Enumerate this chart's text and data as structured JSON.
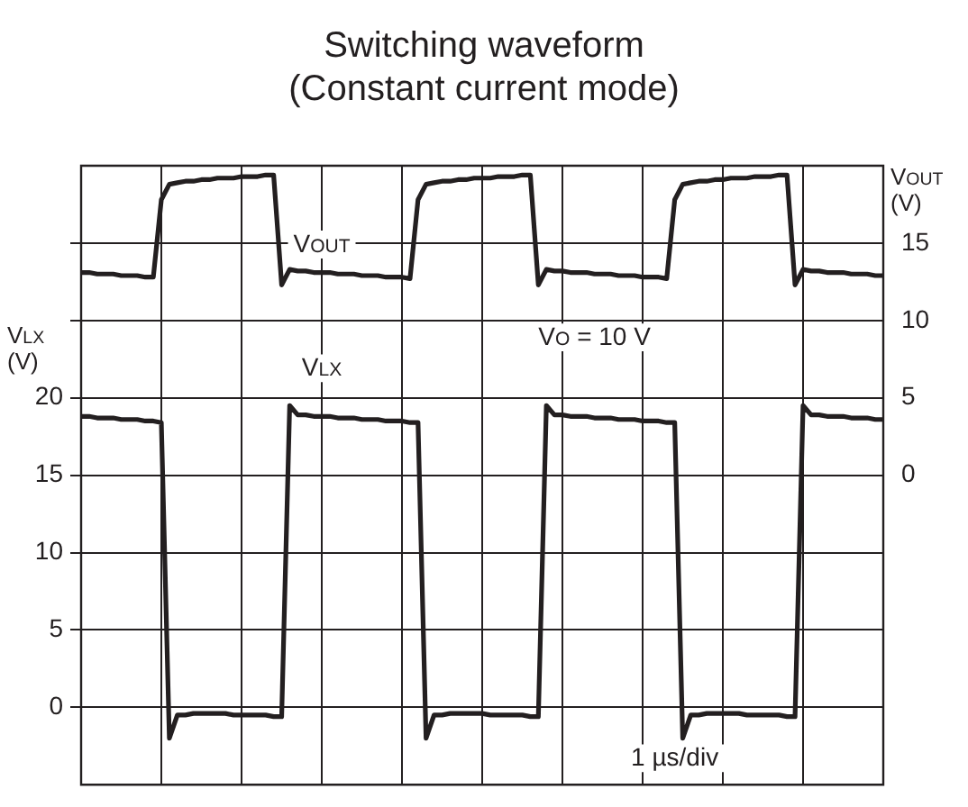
{
  "chart_data": {
    "type": "line",
    "title": "Switching waveform",
    "subtitle": "(Constant current mode)",
    "ylabel": "V$_{LX}$ (V)",
    "y2label": "V$_{OUT}$ (V)",
    "annotations": [
      "V$_{O}$ = 10 V",
      "1 µs/div"
    ],
    "categories": [
      null,
      null,
      null,
      null,
      null,
      null,
      null,
      null,
      null,
      null,
      null,
      null,
      null,
      null,
      null,
      null,
      null,
      null,
      null,
      null,
      null,
      null,
      null,
      null,
      null,
      null,
      null,
      null,
      null,
      null,
      null,
      null,
      null,
      null,
      null,
      null,
      null,
      null,
      null,
      null,
      null,
      null,
      null,
      null,
      null,
      null,
      null,
      null,
      null,
      null,
      null,
      null,
      null,
      null,
      null,
      null,
      null,
      null,
      null,
      null,
      null,
      null,
      null,
      null,
      null,
      null,
      null,
      null,
      null,
      null,
      null,
      null,
      null,
      null,
      null,
      null,
      null,
      null,
      null,
      null,
      null,
      null,
      null,
      null,
      null,
      null,
      null,
      null,
      null,
      null,
      null,
      null,
      null,
      null,
      null,
      null,
      null,
      null,
      null,
      null,
      null
    ],
    "ylim": [
      -5,
      35
    ],
    "yticks": [
      0,
      5,
      10,
      15,
      20,
      {
        "value": 25,
        "label": null
      },
      {
        "value": 30,
        "label": null
      }
    ],
    "y2lim": [
      -20,
      20
    ],
    "y2ticks": [
      0,
      5,
      10,
      15
    ],
    "grid": true,
    "series": [
      {
        "name": "V$_{OUT}$",
        "color": "#231f20",
        "axis": "y2",
        "values": [
          13.1,
          13.1,
          13.0,
          13.0,
          13.0,
          12.9,
          12.9,
          12.9,
          12.8,
          12.8,
          17.8,
          18.8,
          18.9,
          19.0,
          19.0,
          19.1,
          19.1,
          19.2,
          19.2,
          19.2,
          19.3,
          19.3,
          19.3,
          19.4,
          19.4,
          12.3,
          13.3,
          13.2,
          13.2,
          13.1,
          13.1,
          13.1,
          13.0,
          13.0,
          13.0,
          12.9,
          12.9,
          12.9,
          12.8,
          12.8,
          12.8,
          12.7,
          17.8,
          18.8,
          18.9,
          19.0,
          19.0,
          19.1,
          19.1,
          19.2,
          19.2,
          19.2,
          19.3,
          19.3,
          19.3,
          19.4,
          19.4,
          12.3,
          13.3,
          13.2,
          13.2,
          13.1,
          13.1,
          13.1,
          13.0,
          13.0,
          13.0,
          12.9,
          12.9,
          12.9,
          12.8,
          12.8,
          12.8,
          12.7,
          17.8,
          18.8,
          18.9,
          19.0,
          19.0,
          19.1,
          19.1,
          19.2,
          19.2,
          19.2,
          19.3,
          19.3,
          19.3,
          19.4,
          19.4,
          12.3,
          13.3,
          13.2,
          13.2,
          13.1,
          13.1,
          13.1,
          13.0,
          13.0,
          13.0,
          12.9,
          12.9
        ]
      },
      {
        "name": "V$_{LX}$",
        "color": "#231f20",
        "values": [
          18.8,
          18.8,
          18.7,
          18.7,
          18.7,
          18.6,
          18.6,
          18.6,
          18.5,
          18.5,
          18.4,
          -2.0,
          -0.5,
          -0.5,
          -0.4,
          -0.4,
          -0.4,
          -0.4,
          -0.4,
          -0.5,
          -0.5,
          -0.5,
          -0.5,
          -0.5,
          -0.6,
          -0.6,
          19.5,
          18.9,
          18.9,
          18.8,
          18.8,
          18.8,
          18.7,
          18.7,
          18.7,
          18.6,
          18.6,
          18.6,
          18.5,
          18.5,
          18.5,
          18.4,
          18.4,
          -2.0,
          -0.5,
          -0.5,
          -0.4,
          -0.4,
          -0.4,
          -0.4,
          -0.4,
          -0.5,
          -0.5,
          -0.5,
          -0.5,
          -0.5,
          -0.6,
          -0.6,
          19.5,
          18.9,
          18.9,
          18.8,
          18.8,
          18.8,
          18.7,
          18.7,
          18.7,
          18.6,
          18.6,
          18.6,
          18.5,
          18.5,
          18.5,
          18.4,
          18.4,
          -2.0,
          -0.5,
          -0.5,
          -0.4,
          -0.4,
          -0.4,
          -0.4,
          -0.4,
          -0.5,
          -0.5,
          -0.5,
          -0.5,
          -0.5,
          -0.6,
          -0.6,
          19.5,
          18.9,
          18.9,
          18.8,
          18.8,
          18.8,
          18.7,
          18.7,
          18.7,
          18.6,
          18.6
        ]
      }
    ]
  }
}
